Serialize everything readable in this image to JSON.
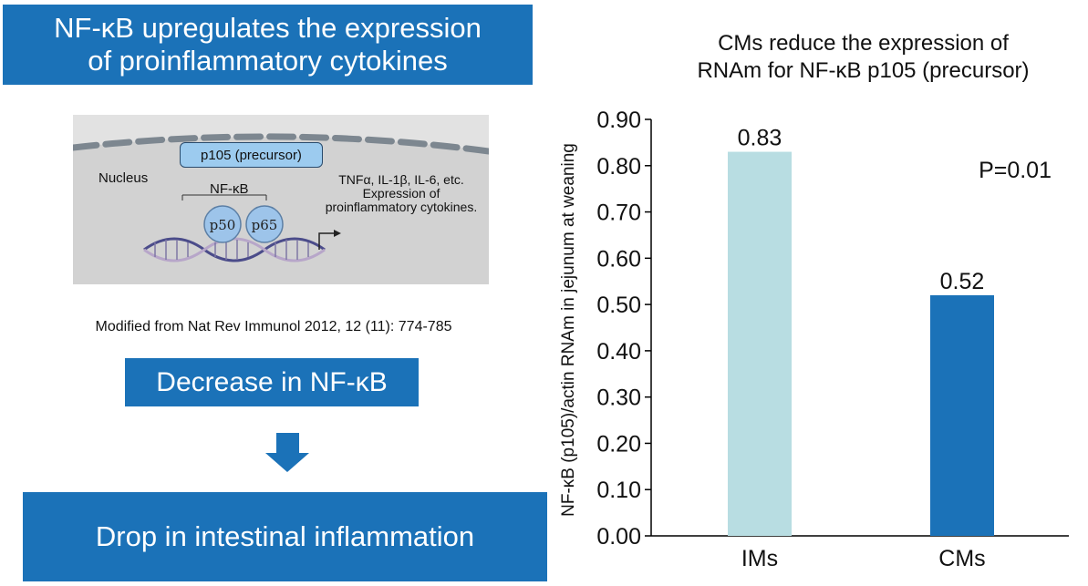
{
  "left_panel": {
    "title_line1": "NF-κB upregulates the expression",
    "title_line2": "of proinflammatory cytokines",
    "diagram": {
      "p105_label": "p105 (precursor)",
      "nucleus_label": "Nucleus",
      "nfkb_label": "NF-κB",
      "p50_label": "p50",
      "p65_label": "p65",
      "cytokine_line1": "TNFα, IL-1β, IL-6, etc.",
      "cytokine_line2": "Expression of",
      "cytokine_line3": "proinflammatory cytokines."
    },
    "source": "Modified from Nat Rev Immunol 2012, 12 (11): 774-785",
    "decrease_label": "Decrease in NF-κB",
    "drop_label": "Drop in intestinal inflammation",
    "colors": {
      "banner": "#1b72b8",
      "p105_box": "#9ccbef",
      "protein": "#9dc4ea"
    }
  },
  "chart_data": {
    "type": "bar",
    "title_line1": "CMs reduce the expression of",
    "title_line2": "RNAm for NF-κB p105 (precursor)",
    "ylabel": "NF-κB (p105)/actin RNAm in jejunum at weaning",
    "xlabel": "",
    "categories": [
      "IMs",
      "CMs"
    ],
    "values": [
      0.83,
      0.52
    ],
    "value_labels": [
      "0.83",
      "0.52"
    ],
    "bar_colors": [
      "#b8dde2",
      "#1b72b8"
    ],
    "ylim": [
      0,
      0.9
    ],
    "yticks": [
      "0.00",
      "0.10",
      "0.20",
      "0.30",
      "0.40",
      "0.50",
      "0.60",
      "0.70",
      "0.80",
      "0.90"
    ],
    "annotation": "P=0.01",
    "grid": false,
    "legend": "none"
  }
}
